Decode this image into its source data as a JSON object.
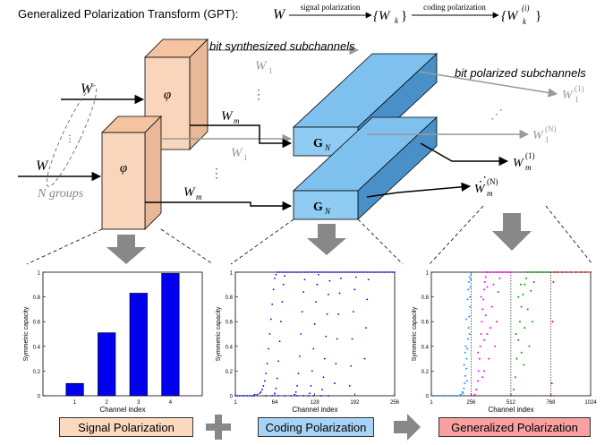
{
  "header": {
    "title": "Generalized Polarization Transform (GPT):",
    "source_symbol": "W",
    "first_arrow_label": "signal polarization",
    "first_result": "{W",
    "first_result_sub": "k",
    "first_result_close": "}",
    "second_arrow_label": "coding polarization",
    "second_result": "{W",
    "second_result_sub": "k",
    "second_result_sup": "(i)",
    "second_result_close": "}"
  },
  "diagram": {
    "bit_synthesized_label": "bit synthesized subchannels",
    "bit_polarized_label": "bit polarized subchannels",
    "input_w_top": "W",
    "input_w_bottom": "W",
    "n_groups_label": "N groups",
    "phi_symbol": "φ",
    "w1": "W",
    "w1_sub": "1",
    "wm": "W",
    "wm_sub": "m",
    "gn": "G",
    "gn_sub": "N",
    "w1_1": "W",
    "w1_1_sub": "1",
    "w1_1_sup": "(1)",
    "w1_N_sup": "(N)",
    "wm_1_sup": "(1)",
    "wm_N_sup": "(N)",
    "ellipsis": "⋮",
    "diag_ellipsis": "⋰"
  },
  "colors": {
    "phi_block": "#f9d5bb",
    "phi_block_dark": "#e8b898",
    "gn_block": "#7ec0ee",
    "gn_block_dark": "#4a90c8",
    "bars": "#0000ee",
    "coding_points": "#0000ee",
    "series1": "#1e90ff",
    "series2": "#ff00ff",
    "series3": "#00a000",
    "series4": "#ff0000",
    "signal_label_bg": "#fbd9bf",
    "coding_label_bg": "#a8d3f5",
    "generalized_label_bg": "#f9a0a0"
  },
  "chart_data": [
    {
      "type": "bar",
      "categories": [
        "1",
        "2",
        "3",
        "4"
      ],
      "values": [
        0.1,
        0.51,
        0.83,
        0.99
      ],
      "xlabel": "Channel index",
      "ylabel": "Symmetric capacity",
      "ylim": [
        0,
        1
      ],
      "yticks": [
        "0",
        "0.2",
        "0.4",
        "0.6",
        "0.8",
        "1"
      ]
    },
    {
      "type": "scatter",
      "xlabel": "Channel index",
      "ylabel": "Symmetric capacity",
      "xlim": [
        1,
        256
      ],
      "ylim": [
        0,
        1
      ],
      "xticks": [
        "1",
        "64",
        "128",
        "192",
        "256"
      ],
      "yticks": [
        "0",
        "0.2",
        "0.4",
        "0.6",
        "0.8",
        "1"
      ],
      "series": [
        {
          "points": [
            [
              1,
              0
            ],
            [
              4,
              0
            ],
            [
              8,
              0
            ],
            [
              12,
              0
            ],
            [
              16,
              0
            ],
            [
              20,
              0
            ],
            [
              24,
              0
            ],
            [
              28,
              0
            ],
            [
              32,
              0.01
            ],
            [
              36,
              0.01
            ],
            [
              40,
              0.02
            ],
            [
              42,
              0.03
            ],
            [
              44,
              0.05
            ],
            [
              46,
              0.08
            ],
            [
              48,
              0.12
            ],
            [
              50,
              0.18
            ],
            [
              52,
              0.26
            ],
            [
              54,
              0.38
            ],
            [
              56,
              0.5
            ],
            [
              58,
              0.62
            ],
            [
              60,
              0.74
            ],
            [
              62,
              0.86
            ],
            [
              64,
              0.95
            ],
            [
              66,
              0.98
            ],
            [
              68,
              1
            ],
            [
              72,
              1
            ],
            [
              76,
              1
            ],
            [
              80,
              1
            ],
            [
              84,
              1
            ],
            [
              88,
              1
            ],
            [
              92,
              1
            ],
            [
              96,
              1
            ],
            [
              100,
              1
            ],
            [
              104,
              1
            ],
            [
              108,
              1
            ],
            [
              112,
              1
            ],
            [
              116,
              1
            ],
            [
              120,
              1
            ],
            [
              124,
              1
            ],
            [
              128,
              1
            ],
            [
              132,
              1
            ],
            [
              136,
              1
            ],
            [
              140,
              1
            ],
            [
              144,
              1
            ],
            [
              148,
              1
            ],
            [
              152,
              1
            ],
            [
              156,
              1
            ],
            [
              160,
              1
            ],
            [
              164,
              1
            ],
            [
              168,
              1
            ],
            [
              172,
              1
            ],
            [
              176,
              1
            ],
            [
              180,
              1
            ],
            [
              184,
              1
            ],
            [
              188,
              1
            ],
            [
              192,
              1
            ],
            [
              196,
              1
            ],
            [
              200,
              1
            ],
            [
              204,
              1
            ],
            [
              208,
              1
            ],
            [
              212,
              1
            ],
            [
              216,
              1
            ],
            [
              220,
              1
            ],
            [
              224,
              1
            ],
            [
              228,
              1
            ],
            [
              232,
              1
            ],
            [
              236,
              1
            ],
            [
              240,
              1
            ],
            [
              244,
              1
            ],
            [
              248,
              1
            ],
            [
              252,
              1
            ],
            [
              256,
              1
            ],
            [
              64,
              0.02
            ],
            [
              66,
              0.06
            ],
            [
              68,
              0.14
            ],
            [
              70,
              0.28
            ],
            [
              72,
              0.44
            ],
            [
              74,
              0.6
            ],
            [
              76,
              0.76
            ],
            [
              78,
              0.9
            ],
            [
              80,
              0.97
            ],
            [
              96,
              0.01
            ],
            [
              98,
              0.03
            ],
            [
              100,
              0.08
            ],
            [
              102,
              0.18
            ],
            [
              104,
              0.32
            ],
            [
              106,
              0.5
            ],
            [
              108,
              0.68
            ],
            [
              110,
              0.84
            ],
            [
              112,
              0.94
            ],
            [
              120,
              0.02
            ],
            [
              122,
              0.08
            ],
            [
              124,
              0.2
            ],
            [
              126,
              0.38
            ],
            [
              128,
              0.58
            ],
            [
              130,
              0.76
            ],
            [
              132,
              0.9
            ],
            [
              134,
              0.98
            ],
            [
              140,
              0.05
            ],
            [
              142,
              0.15
            ],
            [
              144,
              0.3
            ],
            [
              146,
              0.48
            ],
            [
              148,
              0.66
            ],
            [
              150,
              0.82
            ],
            [
              152,
              0.93
            ],
            [
              160,
              0.1
            ],
            [
              162,
              0.26
            ],
            [
              164,
              0.46
            ],
            [
              166,
              0.66
            ],
            [
              168,
              0.83
            ],
            [
              170,
              0.95
            ],
            [
              184,
              0.08
            ],
            [
              186,
              0.24
            ],
            [
              188,
              0.46
            ],
            [
              190,
              0.68
            ],
            [
              192,
              0.86
            ],
            [
              194,
              0.96
            ],
            [
              208,
              0.3
            ],
            [
              210,
              0.55
            ],
            [
              212,
              0.78
            ],
            [
              214,
              0.94
            ],
            [
              30,
              0
            ],
            [
              50,
              0
            ],
            [
              60,
              0
            ],
            [
              70,
              0
            ],
            [
              80,
              0
            ],
            [
              90,
              0
            ],
            [
              100,
              0
            ],
            [
              110,
              0
            ],
            [
              118,
              0
            ],
            [
              126,
              0
            ],
            [
              138,
              0
            ],
            [
              150,
              0
            ]
          ]
        }
      ]
    },
    {
      "type": "scatter",
      "xlabel": "Channel index",
      "ylabel": "Symmetric capacity",
      "xlim": [
        1,
        1024
      ],
      "ylim": [
        0,
        1
      ],
      "xticks": [
        "1",
        "256",
        "512",
        "768",
        "1024"
      ],
      "yticks": [
        "0",
        "0.2",
        "0.4",
        "0.6",
        "0.8",
        "1"
      ],
      "series": [
        {
          "points": [
            [
              1,
              0
            ],
            [
              40,
              0
            ],
            [
              80,
              0
            ],
            [
              120,
              0
            ],
            [
              160,
              0
            ],
            [
              190,
              0.01
            ],
            [
              200,
              0.03
            ],
            [
              210,
              0.06
            ],
            [
              215,
              0.1
            ],
            [
              220,
              0.16
            ],
            [
              225,
              0.22
            ],
            [
              228,
              0.3
            ],
            [
              232,
              0.38
            ],
            [
              236,
              0.46
            ],
            [
              240,
              0.55
            ],
            [
              244,
              0.64
            ],
            [
              248,
              0.72
            ],
            [
              250,
              0.8
            ],
            [
              252,
              0.88
            ],
            [
              254,
              0.94
            ],
            [
              256,
              0.98
            ],
            [
              205,
              0.02
            ],
            [
              218,
              0.35
            ],
            [
              226,
              0.62
            ],
            [
              234,
              0.78
            ],
            [
              238,
              0.86
            ],
            [
              242,
              0.92
            ],
            [
              246,
              0.5
            ],
            [
              230,
              0.12
            ],
            [
              222,
              0.4
            ],
            [
              212,
              0.25
            ],
            [
              246,
              0.96
            ]
          ]
        },
        {
          "points": [
            [
              260,
              0
            ],
            [
              280,
              0.01
            ],
            [
              290,
              0.05
            ],
            [
              300,
              0.12
            ],
            [
              305,
              0.2
            ],
            [
              310,
              0.3
            ],
            [
              315,
              0.4
            ],
            [
              320,
              0.5
            ],
            [
              325,
              0.6
            ],
            [
              330,
              0.7
            ],
            [
              335,
              0.78
            ],
            [
              340,
              0.86
            ],
            [
              345,
              0.92
            ],
            [
              350,
              0.96
            ],
            [
              355,
              1
            ],
            [
              360,
              1
            ],
            [
              380,
              1
            ],
            [
              400,
              1
            ],
            [
              420,
              1
            ],
            [
              440,
              1
            ],
            [
              460,
              1
            ],
            [
              480,
              1
            ],
            [
              500,
              1
            ],
            [
              510,
              1
            ],
            [
              320,
              0.8
            ],
            [
              330,
              0.15
            ],
            [
              340,
              0.45
            ],
            [
              350,
              0.65
            ],
            [
              360,
              0.88
            ],
            [
              370,
              0.3
            ],
            [
              380,
              0.55
            ],
            [
              390,
              0.72
            ],
            [
              400,
              0.9
            ],
            [
              410,
              0.4
            ],
            [
              420,
              0.6
            ],
            [
              430,
              0.84
            ],
            [
              440,
              0.95
            ],
            [
              360,
              0.5
            ],
            [
              300,
              0.35
            ],
            [
              340,
              0.2
            ]
          ]
        },
        {
          "points": [
            [
              515,
              0
            ],
            [
              530,
              0.05
            ],
            [
              540,
              0.15
            ],
            [
              550,
              0.3
            ],
            [
              560,
              0.45
            ],
            [
              570,
              0.6
            ],
            [
              580,
              0.72
            ],
            [
              590,
              0.82
            ],
            [
              600,
              0.9
            ],
            [
              610,
              0.95
            ],
            [
              620,
              1
            ],
            [
              640,
              1
            ],
            [
              660,
              1
            ],
            [
              680,
              1
            ],
            [
              700,
              1
            ],
            [
              720,
              1
            ],
            [
              740,
              1
            ],
            [
              760,
              1
            ],
            [
              560,
              0.8
            ],
            [
              580,
              0.35
            ],
            [
              600,
              0.55
            ],
            [
              620,
              0.7
            ],
            [
              640,
              0.85
            ],
            [
              660,
              0.92
            ],
            [
              545,
              0.5
            ],
            [
              575,
              0.9
            ],
            [
              595,
              0.25
            ],
            [
              630,
              0.4
            ],
            [
              650,
              0.6
            ]
          ]
        },
        {
          "points": [
            [
              770,
              0
            ],
            [
              775,
              0.1
            ],
            [
              780,
              0.6
            ],
            [
              785,
              0.92
            ],
            [
              790,
              1
            ],
            [
              810,
              1
            ],
            [
              840,
              1
            ],
            [
              870,
              1
            ],
            [
              900,
              1
            ],
            [
              930,
              1
            ],
            [
              960,
              1
            ],
            [
              990,
              1
            ],
            [
              1024,
              1
            ]
          ]
        }
      ]
    }
  ],
  "footer": {
    "signal_label": "Signal Polarization",
    "coding_label": "Coding Polarization",
    "generalized_label": "Generalized Polarization",
    "plus_symbol": "+"
  }
}
